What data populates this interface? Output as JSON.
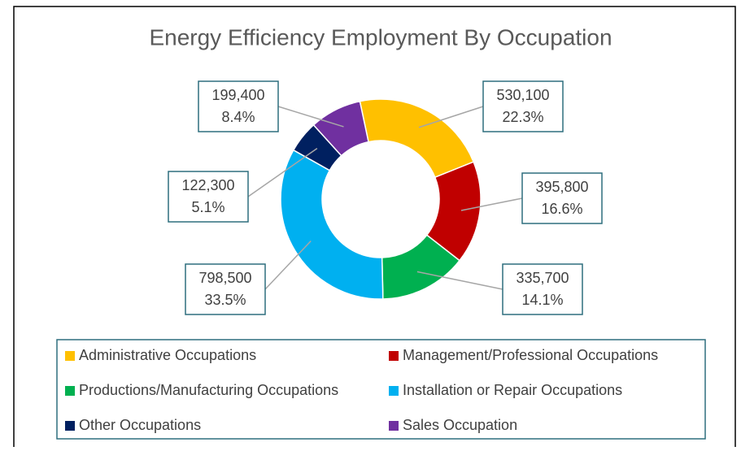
{
  "chart_data": {
    "type": "donut",
    "title": "Energy Efficiency Employment By Occupation",
    "categories": [
      "Administrative Occupations",
      "Management/Professional Occupations",
      "Productions/Manufacturing Occupations",
      "Installation or Repair Occupations",
      "Other Occupations",
      "Sales Occupation"
    ],
    "values": [
      530100,
      395800,
      335700,
      798500,
      122300,
      199400
    ],
    "value_labels": [
      "530,100",
      "395,800",
      "335,700",
      "798,500",
      "122,300",
      "199,400"
    ],
    "percentages": [
      22.3,
      16.6,
      14.1,
      33.5,
      5.1,
      8.4
    ],
    "percentage_labels": [
      "22.3%",
      "16.6%",
      "14.1%",
      "33.5%",
      "5.1%",
      "8.4%"
    ],
    "colors": [
      "#ffc000",
      "#c00000",
      "#00b050",
      "#00b0f0",
      "#002060",
      "#7030a0"
    ],
    "legend": "bottom"
  }
}
